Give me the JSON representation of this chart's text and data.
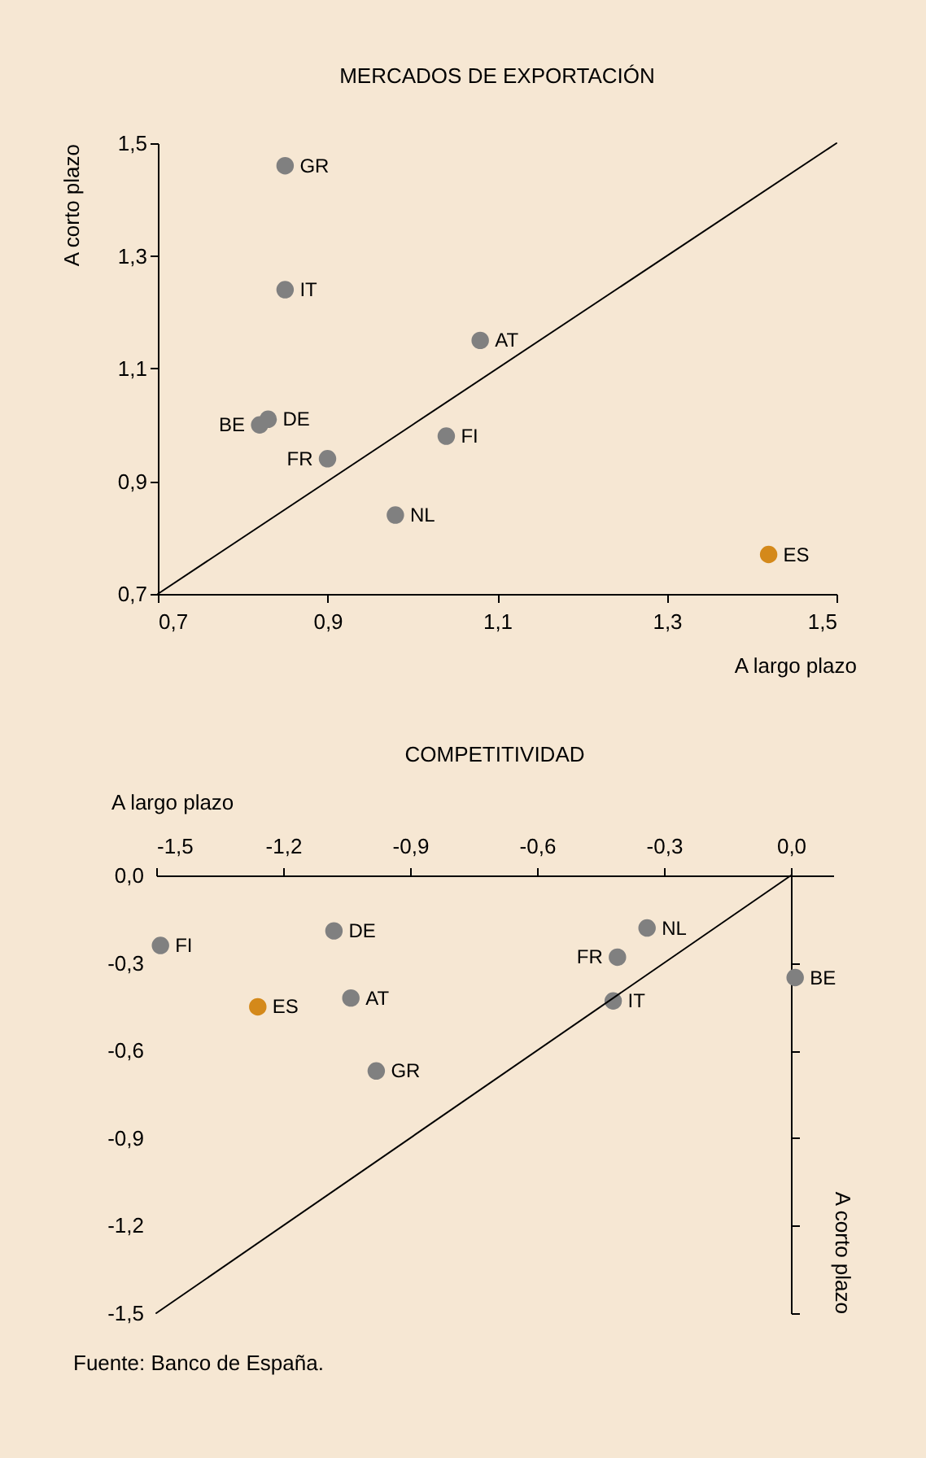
{
  "chart_data": [
    {
      "type": "scatter",
      "title": "MERCADOS DE EXPORTACIÓN",
      "xlabel": "A largo plazo",
      "ylabel": "A corto plazo",
      "xlim": [
        0.7,
        1.5
      ],
      "ylim": [
        0.7,
        1.5
      ],
      "xticks": [
        {
          "value": 0.7,
          "label": "0,7"
        },
        {
          "value": 0.9,
          "label": "0,9"
        },
        {
          "value": 1.1,
          "label": "1,1"
        },
        {
          "value": 1.3,
          "label": "1,3"
        },
        {
          "value": 1.5,
          "label": "1,5"
        }
      ],
      "yticks": [
        {
          "value": 0.7,
          "label": "0,7"
        },
        {
          "value": 0.9,
          "label": "0,9"
        },
        {
          "value": 1.1,
          "label": "1,1"
        },
        {
          "value": 1.3,
          "label": "1,3"
        },
        {
          "value": 1.5,
          "label": "1,5"
        }
      ],
      "grid": false,
      "marker": "circle",
      "series": [
        {
          "color": "#808080",
          "x": [
            0.85,
            0.85,
            1.08,
            0.83,
            0.82,
            0.9,
            1.04,
            0.98
          ],
          "values": [
            1.46,
            1.24,
            1.15,
            1.01,
            1.0,
            0.94,
            0.98,
            0.84
          ]
        },
        {
          "color": "#d4891a",
          "x": [
            1.42
          ],
          "values": [
            0.77
          ]
        },
        {
          "type": "line",
          "marker": "none",
          "color": "#000000",
          "x": [
            0.7,
            1.5
          ],
          "values": [
            0.7,
            1.5
          ]
        }
      ],
      "annotations": [
        {
          "text": "GR",
          "x": 0.85,
          "y": 1.46
        },
        {
          "text": "IT",
          "x": 0.85,
          "y": 1.24
        },
        {
          "text": "AT",
          "x": 1.08,
          "y": 1.15
        },
        {
          "text": "DE",
          "x": 0.83,
          "y": 1.01
        },
        {
          "text": "BE",
          "x": 0.82,
          "y": 1.0
        },
        {
          "text": "FR",
          "x": 0.9,
          "y": 0.94
        },
        {
          "text": "FI",
          "x": 1.04,
          "y": 0.98
        },
        {
          "text": "NL",
          "x": 0.98,
          "y": 0.84
        },
        {
          "text": "ES",
          "x": 1.42,
          "y": 0.77
        }
      ]
    },
    {
      "type": "scatter",
      "title": "COMPETITIVIDAD",
      "xlabel": "A largo plazo",
      "ylabel": "A corto plazo",
      "xlim": [
        -1.5,
        0.1
      ],
      "ylim": [
        -1.5,
        0
      ],
      "xticks": [
        {
          "value": -1.5,
          "label": "-1,5"
        },
        {
          "value": -1.2,
          "label": "-1,2"
        },
        {
          "value": -0.9,
          "label": "-0,9"
        },
        {
          "value": -0.6,
          "label": "-0,6"
        },
        {
          "value": -0.3,
          "label": "-0,3"
        },
        {
          "value": 0,
          "label": "0,0"
        }
      ],
      "yticks": [
        {
          "value": 0,
          "label": "0,0"
        },
        {
          "value": -0.3,
          "label": "-0,3"
        },
        {
          "value": -0.6,
          "label": "-0,6"
        },
        {
          "value": -0.9,
          "label": "-0,9"
        },
        {
          "value": -1.2,
          "label": "-1,2"
        },
        {
          "value": -1.5,
          "label": "-1,5"
        }
      ],
      "marker": "circle",
      "series": [
        {
          "color": "#808080",
          "x": [
            -1.49,
            -1.08,
            -1.04,
            -0.98,
            -0.34,
            -0.41,
            -0.42,
            0.01
          ],
          "values": [
            -0.24,
            -0.19,
            -0.42,
            -0.67,
            -0.18,
            -0.28,
            -0.43,
            -0.35
          ]
        },
        {
          "color": "#d4891a",
          "x": [
            -1.26
          ],
          "values": [
            -0.45
          ]
        },
        {
          "type": "line",
          "marker": "none",
          "color": "#000000",
          "x": [
            -1.5,
            0
          ],
          "values": [
            -1.5,
            0
          ]
        }
      ],
      "annotations": [
        {
          "text": "FI",
          "x": -1.49,
          "y": -0.24
        },
        {
          "text": "DE",
          "x": -1.08,
          "y": -0.19
        },
        {
          "text": "AT",
          "x": -1.04,
          "y": -0.42
        },
        {
          "text": "GR",
          "x": -0.98,
          "y": -0.67
        },
        {
          "text": "NL",
          "x": -0.34,
          "y": -0.18
        },
        {
          "text": "FR",
          "x": -0.41,
          "y": -0.28
        },
        {
          "text": "IT",
          "x": -0.42,
          "y": -0.43
        },
        {
          "text": "BE",
          "x": 0.01,
          "y": -0.35
        },
        {
          "text": "ES",
          "x": -1.26,
          "y": -0.45
        },
        "Fuente: Banco de España."
      ]
    }
  ]
}
